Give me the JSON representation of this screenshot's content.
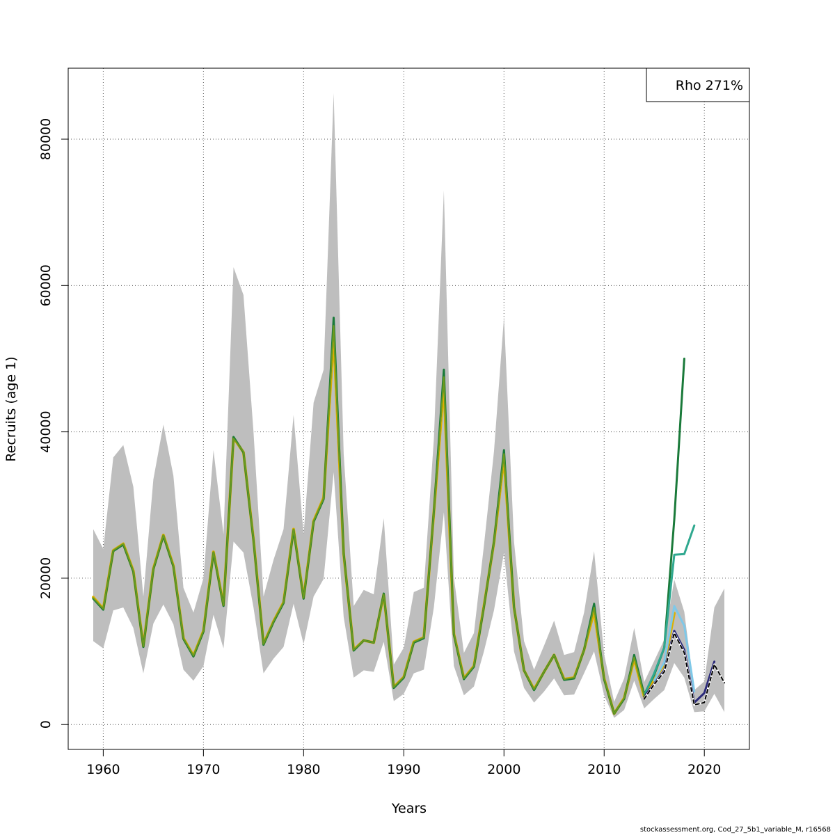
{
  "chart_data": {
    "type": "line",
    "title": "",
    "xlabel": "Years",
    "ylabel": "Recruits (age 1)",
    "xlim": [
      1956.5,
      2024.5
    ],
    "ylim": [
      -3400,
      89700
    ],
    "x_ticks": [
      1960,
      1970,
      1980,
      1990,
      2000,
      2010,
      2020
    ],
    "y_ticks": [
      0,
      20000,
      40000,
      60000,
      80000
    ],
    "legend_text": "Rho 271%",
    "legend_position": "top-right",
    "grid": true,
    "confidence_band": {
      "x": [
        1959,
        1960,
        1961,
        1962,
        1963,
        1964,
        1965,
        1966,
        1967,
        1968,
        1969,
        1970,
        1971,
        1972,
        1973,
        1974,
        1975,
        1976,
        1977,
        1978,
        1979,
        1980,
        1981,
        1982,
        1983,
        1984,
        1985,
        1986,
        1987,
        1988,
        1989,
        1990,
        1991,
        1992,
        1993,
        1994,
        1995,
        1996,
        1997,
        1998,
        1999,
        2000,
        2001,
        2002,
        2003,
        2004,
        2005,
        2006,
        2007,
        2008,
        2009,
        2010,
        2011,
        2012,
        2013,
        2014,
        2015,
        2016,
        2017,
        2018,
        2019,
        2020,
        2021,
        2022
      ],
      "upper": [
        26700,
        24000,
        36500,
        38200,
        32500,
        17500,
        33500,
        41000,
        34000,
        18700,
        15300,
        20000,
        37500,
        26000,
        62500,
        58700,
        40000,
        17500,
        22500,
        26700,
        42300,
        26000,
        44000,
        48500,
        86300,
        37000,
        16200,
        18400,
        17800,
        28200,
        8200,
        10500,
        18100,
        18700,
        39000,
        73000,
        20100,
        9800,
        12500,
        24500,
        37300,
        55700,
        25000,
        11400,
        7500,
        10800,
        14200,
        9500,
        9900,
        15300,
        23700,
        9600,
        3100,
        6300,
        13200,
        5800,
        8700,
        11600,
        19800,
        15400,
        4700,
        5900,
        16000,
        18600
      ],
      "lower": [
        11400,
        10400,
        15600,
        16000,
        13200,
        7000,
        13800,
        16400,
        13700,
        7500,
        6000,
        8000,
        15000,
        10400,
        25000,
        23500,
        16000,
        7000,
        9000,
        10600,
        16500,
        11000,
        17500,
        19900,
        34500,
        14700,
        6400,
        7400,
        7200,
        11300,
        3200,
        4200,
        7000,
        7500,
        16000,
        29000,
        8000,
        4000,
        5200,
        10000,
        15600,
        23500,
        10000,
        5000,
        3000,
        4500,
        6300,
        4000,
        4100,
        7000,
        10000,
        4000,
        900,
        2000,
        6000,
        2200,
        3500,
        4700,
        8400,
        6400,
        1700,
        1800,
        4200,
        1700
      ]
    },
    "series": [
      {
        "name": "gold",
        "color": "#DDB000",
        "width": 4,
        "x": [
          1959,
          1960,
          1961,
          1962,
          1963,
          1964,
          1965,
          1966,
          1967,
          1968,
          1969,
          1970,
          1971,
          1972,
          1973,
          1974,
          1975,
          1976,
          1977,
          1978,
          1979,
          1980,
          1981,
          1982,
          1983,
          1984,
          1985,
          1986,
          1987,
          1988,
          1989,
          1990,
          1991,
          1992,
          1993,
          1994,
          1995,
          1996,
          1997,
          1998,
          1999,
          2000,
          2001,
          2002,
          2003,
          2004,
          2005,
          2006,
          2007,
          2008,
          2009,
          2010,
          2011,
          2012,
          2013,
          2014,
          2015,
          2016,
          2017
        ],
        "values": [
          17400,
          15800,
          23800,
          24700,
          21000,
          10700,
          21300,
          25900,
          21700,
          11800,
          9400,
          12800,
          23600,
          16300,
          39200,
          37200,
          25300,
          11000,
          14100,
          16700,
          26700,
          17300,
          27800,
          31000,
          53200,
          23300,
          10200,
          11500,
          11200,
          17800,
          5100,
          6500,
          11300,
          11900,
          29000,
          46500,
          12400,
          6300,
          8000,
          16200,
          24900,
          36500,
          16000,
          7400,
          4800,
          7200,
          9500,
          6200,
          6400,
          10200,
          15500,
          6300,
          1500,
          3600,
          9000,
          3800,
          6100,
          8200,
          15200
        ]
      },
      {
        "name": "dark-green",
        "color": "#1A7A3A",
        "width": 3,
        "x": [
          1959,
          1960,
          1961,
          1962,
          1963,
          1964,
          1965,
          1966,
          1967,
          1968,
          1969,
          1970,
          1971,
          1972,
          1973,
          1974,
          1975,
          1976,
          1977,
          1978,
          1979,
          1980,
          1981,
          1982,
          1983,
          1984,
          1985,
          1986,
          1987,
          1988,
          1989,
          1990,
          1991,
          1992,
          1993,
          1994,
          1995,
          1996,
          1997,
          1998,
          1999,
          2000,
          2001,
          2002,
          2003,
          2004,
          2005,
          2006,
          2007,
          2008,
          2009,
          2010,
          2011,
          2012,
          2013,
          2014,
          2015,
          2016,
          2017,
          2018
        ],
        "values": [
          17200,
          15700,
          23700,
          24600,
          20900,
          10600,
          21200,
          25800,
          21600,
          11700,
          9300,
          12700,
          23500,
          16200,
          39300,
          37200,
          25200,
          10900,
          14000,
          16600,
          26600,
          17200,
          27700,
          30800,
          55600,
          23400,
          10100,
          11500,
          11200,
          17900,
          5000,
          6400,
          11200,
          11800,
          29100,
          48500,
          12300,
          6200,
          7900,
          16100,
          25000,
          37500,
          16000,
          7400,
          4700,
          7200,
          9500,
          6100,
          6300,
          10200,
          16500,
          6200,
          1500,
          3500,
          9500,
          4100,
          6800,
          10500,
          28000,
          50000
        ]
      },
      {
        "name": "teal",
        "color": "#2FA88F",
        "width": 3,
        "x": [
          2014,
          2015,
          2016,
          2017,
          2018,
          2019
        ],
        "values": [
          4000,
          7000,
          10500,
          23200,
          23300,
          27200
        ]
      },
      {
        "name": "light-blue",
        "color": "#7FC8E8",
        "width": 3,
        "x": [
          2015,
          2016,
          2017,
          2018,
          2019
        ],
        "values": [
          6000,
          8500,
          16200,
          13500,
          4500
        ]
      },
      {
        "name": "navy",
        "color": "#2B2A7A",
        "width": 3,
        "x": [
          2014,
          2015,
          2016,
          2017,
          2018,
          2019,
          2020,
          2021
        ],
        "values": [
          3800,
          5600,
          7400,
          12800,
          10200,
          3000,
          4300,
          8600
        ]
      },
      {
        "name": "olive-green",
        "color": "#6E9A1E",
        "width": 2,
        "x": [
          1959,
          1960,
          1961,
          1962,
          1963,
          1964,
          1965,
          1966,
          1967,
          1968,
          1969,
          1970,
          1971,
          1972,
          1973,
          1974,
          1975,
          1976,
          1977,
          1978,
          1979,
          1980,
          1981,
          1982,
          1983,
          1984,
          1985,
          1986,
          1987,
          1988,
          1989,
          1990,
          1991,
          1992,
          1993,
          1994,
          1995,
          1996,
          1997,
          1998,
          1999,
          2000,
          2001,
          2002,
          2003,
          2004,
          2005,
          2006,
          2007,
          2008,
          2009,
          2010,
          2011,
          2012,
          2013,
          2014
        ],
        "values": [
          17300,
          15800,
          23800,
          24700,
          21000,
          10700,
          21300,
          25900,
          21700,
          11800,
          9400,
          12800,
          23600,
          16300,
          39100,
          37300,
          25300,
          11000,
          14100,
          16700,
          26700,
          17300,
          27800,
          30900,
          54500,
          23300,
          10200,
          11500,
          11200,
          17800,
          5100,
          6500,
          11300,
          11900,
          29000,
          47500,
          12400,
          6300,
          8000,
          16200,
          24900,
          37000,
          16000,
          7400,
          4800,
          7200,
          9500,
          6200,
          6400,
          10200,
          16000,
          6300,
          1500,
          3600,
          9200,
          3900
        ]
      },
      {
        "name": "base-run",
        "color": "#000000",
        "width": 2,
        "dashed": true,
        "x": [
          2014,
          2015,
          2016,
          2017,
          2018,
          2019,
          2020,
          2021,
          2022
        ],
        "values": [
          3500,
          5500,
          7200,
          12500,
          9800,
          2700,
          3000,
          8200,
          5700
        ]
      }
    ]
  },
  "footnote": "stockassessment.org, Cod_27_5b1_variable_M, r16568"
}
